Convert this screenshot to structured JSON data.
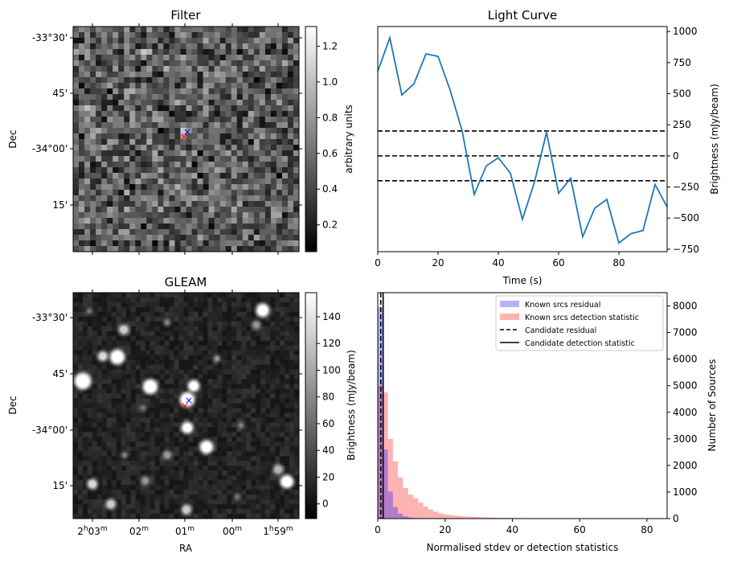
{
  "panels": {
    "filter": {
      "title": "Filter",
      "ylabel": "Dec",
      "yticks": [
        "-33°30'",
        "45'",
        "-34°00'",
        "15'"
      ],
      "colorbar": {
        "label": "arbitrary units",
        "ticks": [
          "0.2",
          "0.4",
          "0.6",
          "0.8",
          "1.0",
          "1.2"
        ],
        "range": [
          0.05,
          1.31
        ]
      },
      "markers": [
        {
          "symbol": "×",
          "color": "#0000ff"
        },
        {
          "symbol": "×",
          "color": "#ff0000"
        }
      ]
    },
    "gleam": {
      "title": "GLEAM",
      "ylabel": "Dec",
      "xlabel": "RA",
      "yticks": [
        "-33°30'",
        "45'",
        "-34°00'",
        "15'"
      ],
      "colorbar": {
        "label": "Brightness (mJy/beam)",
        "ticks": [
          "0",
          "20",
          "40",
          "60",
          "80",
          "100",
          "120",
          "140"
        ],
        "range": [
          -11,
          158
        ]
      },
      "markers": [
        {
          "symbol": "×",
          "color": "#0000ff"
        },
        {
          "symbol": "×",
          "color": "#ff0000"
        }
      ]
    }
  },
  "chart_data": [
    {
      "type": "line",
      "title": "Light Curve",
      "xlabel": "Time (s)",
      "ylabel": "Brightness (mJy/beam)",
      "xlim": [
        0,
        96
      ],
      "ylim": [
        -770,
        1040
      ],
      "xticks": [
        0,
        20,
        40,
        60,
        80
      ],
      "yticks": [
        -750,
        -500,
        -250,
        0,
        250,
        500,
        750,
        1000
      ],
      "hlines": [
        200,
        0,
        -200
      ],
      "series": [
        {
          "color": "#1f77b4",
          "x": [
            0,
            4,
            8,
            12,
            16,
            20,
            24,
            28,
            32,
            36,
            40,
            44,
            48,
            52,
            56,
            60,
            64,
            68,
            72,
            76,
            80,
            84,
            88,
            92,
            96
          ],
          "y": [
            680,
            950,
            490,
            580,
            820,
            800,
            530,
            200,
            -310,
            -80,
            -15,
            -140,
            -510,
            -210,
            190,
            -300,
            -180,
            -650,
            -420,
            -350,
            -700,
            -625,
            -600,
            -230,
            -410
          ]
        }
      ]
    },
    {
      "type": "bar",
      "xlabel": "Normalised stdev or detection statistics",
      "ylabel": "Number of Sources",
      "xlim": [
        0,
        86
      ],
      "ylim": [
        0,
        8500
      ],
      "xticks": [
        0,
        20,
        40,
        60,
        80
      ],
      "yticks": [
        0,
        1000,
        2000,
        3000,
        4000,
        5000,
        6000,
        7000,
        8000
      ],
      "legend_position": "upper-right",
      "bin_width": 1.5,
      "series": [
        {
          "name": "Known srcs residual",
          "color": "#0000ff",
          "values": [
            7950,
            2600,
            1020,
            430,
            190,
            90,
            40,
            20,
            10,
            5
          ]
        },
        {
          "name": "Known srcs detection statistic",
          "color": "#ff0000",
          "values": [
            5000,
            4750,
            3000,
            2150,
            1550,
            1150,
            900,
            760,
            600,
            450,
            340,
            260,
            200,
            160,
            130,
            110,
            90,
            80,
            70,
            60,
            52,
            45,
            40,
            35,
            30,
            28,
            25,
            22,
            20,
            18,
            16,
            15,
            13,
            12,
            11,
            10,
            9,
            8,
            8,
            7,
            6,
            6,
            5,
            5,
            4,
            4,
            3,
            3,
            3,
            3,
            2,
            2,
            2,
            2,
            2,
            2
          ]
        }
      ],
      "vlines": [
        {
          "name": "Candidate residual",
          "x": 0.9,
          "style": "dashed"
        },
        {
          "name": "Candidate detection statistic",
          "x": 1.6,
          "style": "solid"
        }
      ]
    }
  ],
  "ra_ticks": [
    {
      "h": "2",
      "m": "03"
    },
    {
      "h": "",
      "m": "02"
    },
    {
      "h": "",
      "m": "01"
    },
    {
      "h": "",
      "m": "00"
    },
    {
      "h": "1",
      "m": "59"
    }
  ],
  "colors": {
    "axis": "#000000",
    "dash": "#000000"
  }
}
